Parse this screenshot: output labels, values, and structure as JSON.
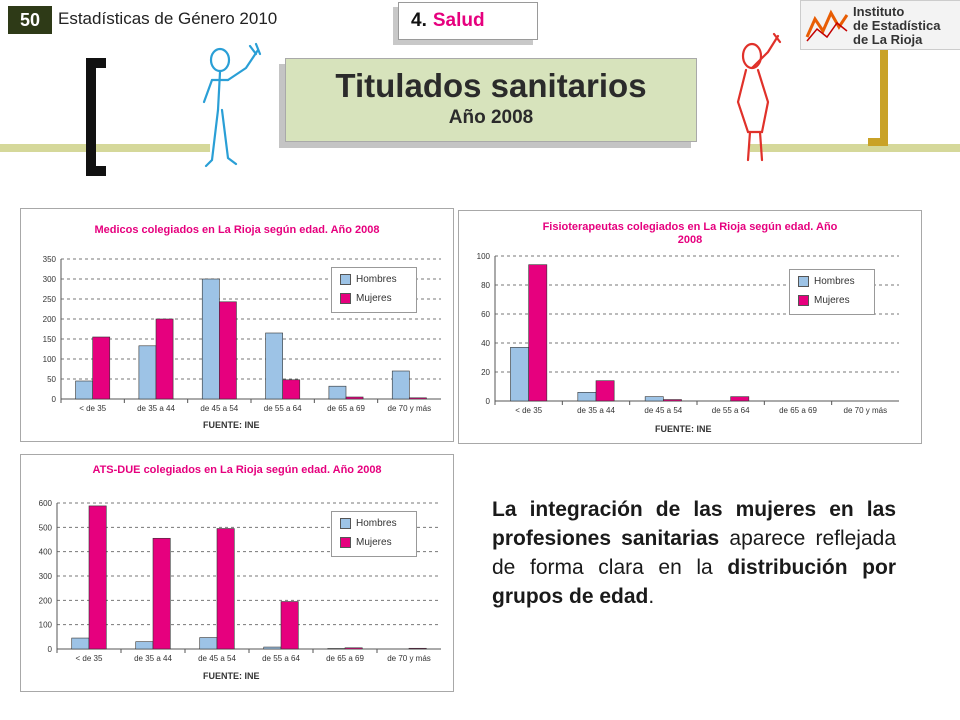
{
  "header": {
    "page_number": "50",
    "publication": "Estadísticas de Género 2010",
    "section_number": "4.",
    "section_name": "Salud",
    "logo_text": [
      "Instituto",
      "de Estadística",
      "de La Rioja"
    ]
  },
  "title": {
    "main": "Titulados sanitarios",
    "year": "Año 2008"
  },
  "colors": {
    "hombres": "#9dc3e6",
    "mujeres": "#e6007e",
    "accent": "#e6007e",
    "title_bg": "#d7e3bc"
  },
  "body_text": {
    "part1": "La integración de las mujeres en las profesiones sanitarias",
    "part2": "aparece reflejada de forma clara en la",
    "part3": "distribución por grupos de edad",
    "part4": "."
  },
  "chart_data": [
    {
      "type": "bar",
      "title": "Medicos colegiados en La Rioja según edad. Año 2008",
      "categories": [
        "< de 35",
        "de 35 a 44",
        "de 45 a 54",
        "de 55 a 64",
        "de 65 a 69",
        "de 70 y más"
      ],
      "series": [
        {
          "name": "Hombres",
          "values": [
            45,
            133,
            300,
            165,
            32,
            70
          ]
        },
        {
          "name": "Mujeres",
          "values": [
            155,
            200,
            243,
            48,
            5,
            3
          ]
        }
      ],
      "ylim": [
        0,
        350
      ],
      "yticks": [
        0,
        50,
        100,
        150,
        200,
        250,
        300,
        350
      ],
      "source": "FUENTE: INE",
      "legend": "top-right",
      "grid": true
    },
    {
      "type": "bar",
      "title": "Fisioterapeutas colegiados en La Rioja según edad. Año 2008",
      "categories": [
        "< de 35",
        "de 35 a 44",
        "de 45 a 54",
        "de 55 a 64",
        "de 65 a 69",
        "de 70 y más"
      ],
      "series": [
        {
          "name": "Hombres",
          "values": [
            37,
            6,
            3,
            0,
            0,
            0
          ]
        },
        {
          "name": "Mujeres",
          "values": [
            94,
            14,
            1,
            3,
            0,
            0
          ]
        }
      ],
      "ylim": [
        0,
        100
      ],
      "yticks": [
        0,
        20,
        40,
        60,
        80,
        100
      ],
      "source": "FUENTE: INE",
      "legend": "top-right",
      "grid": true
    },
    {
      "type": "bar",
      "title": "ATS-DUE colegiados en La Rioja según edad. Año 2008",
      "categories": [
        "< de 35",
        "de 35 a 44",
        "de 45 a 54",
        "de 55 a 64",
        "de 65 a 69",
        "de 70 y más"
      ],
      "series": [
        {
          "name": "Hombres",
          "values": [
            45,
            30,
            47,
            8,
            2,
            0
          ]
        },
        {
          "name": "Mujeres",
          "values": [
            588,
            455,
            495,
            195,
            5,
            3
          ]
        }
      ],
      "ylim": [
        0,
        600
      ],
      "yticks": [
        0,
        100,
        200,
        300,
        400,
        500,
        600
      ],
      "source": "FUENTE: INE",
      "legend": "top-right",
      "grid": true
    }
  ]
}
